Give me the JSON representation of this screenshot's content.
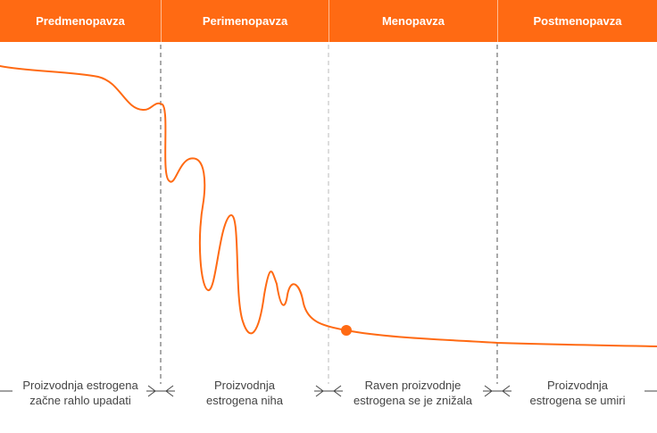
{
  "colors": {
    "accent": "#ff6a13",
    "divider": "#555555",
    "text": "#444444"
  },
  "phases": [
    {
      "label": "Predmenopavza",
      "description_lines": [
        "Proizvodnja estrogena",
        "začne rahlo upadati"
      ]
    },
    {
      "label": "Perimenopavza",
      "description_lines": [
        "Proizvodnja",
        "estrogena niha"
      ]
    },
    {
      "label": "Menopavza",
      "description_lines": [
        "Raven proizvodnje",
        "estrogena se je znižala"
      ]
    },
    {
      "label": "Postmenopavza",
      "description_lines": [
        "Proizvodnja",
        "estrogena se umiri"
      ]
    }
  ]
}
